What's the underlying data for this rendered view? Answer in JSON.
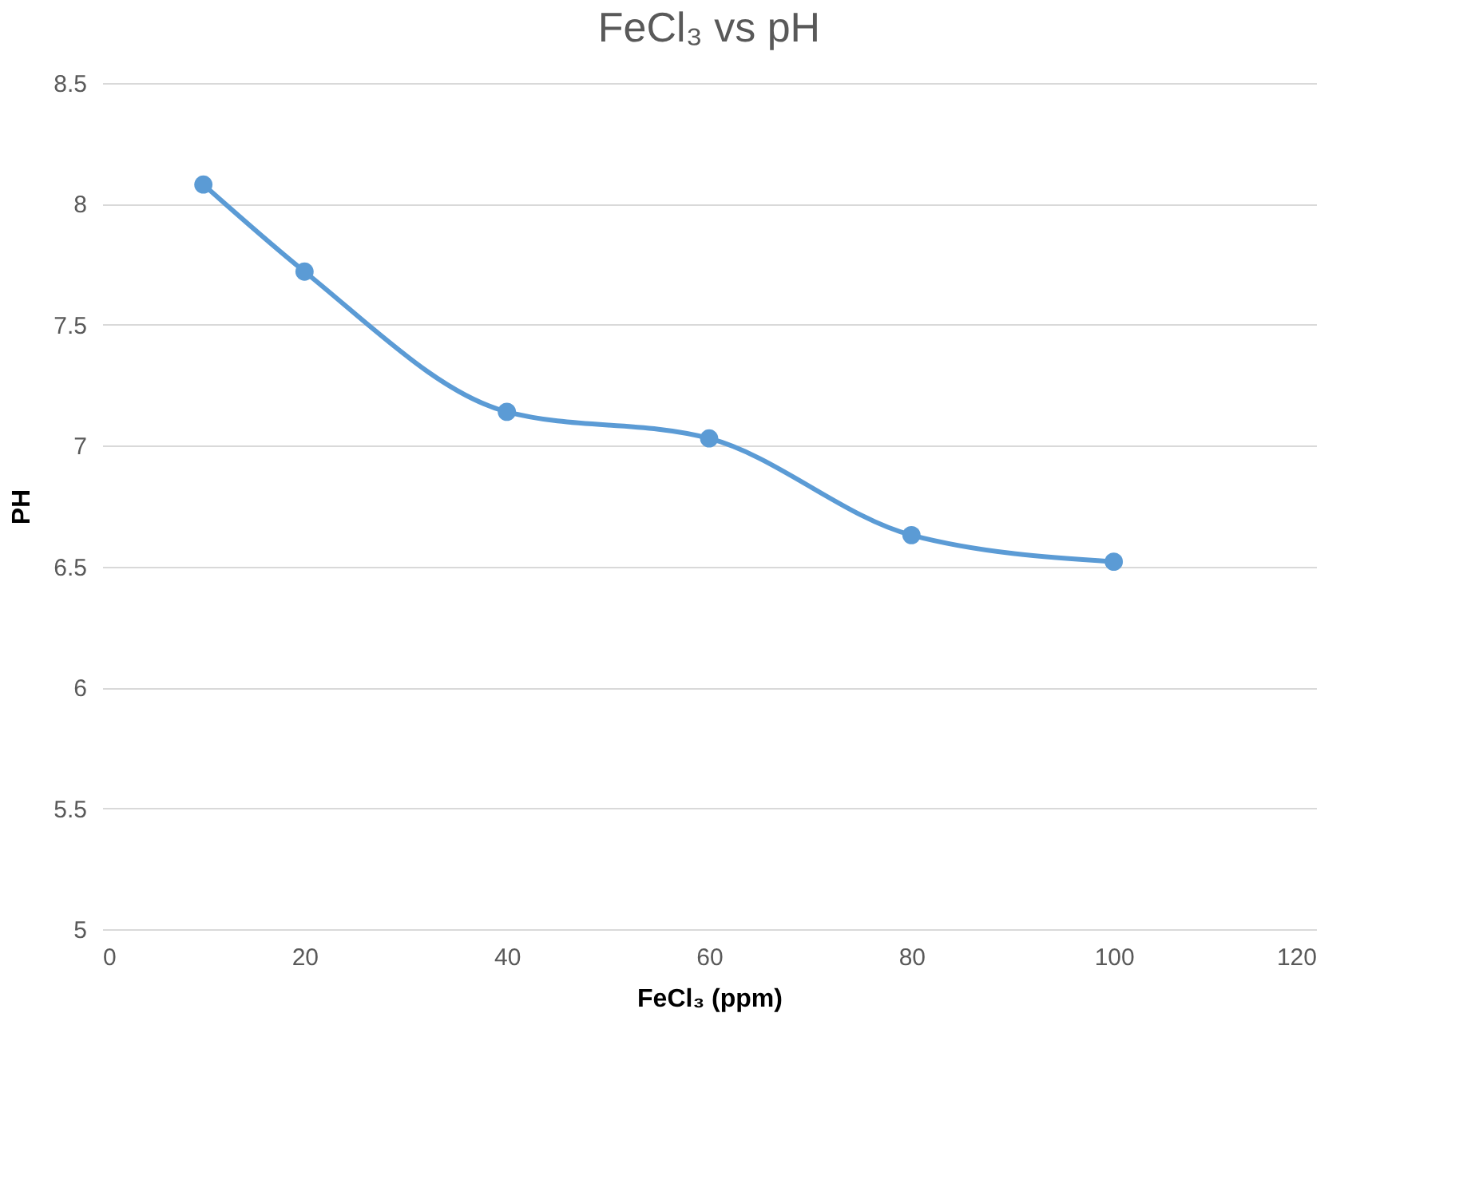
{
  "chart_data": {
    "type": "line",
    "title": "FeCl₃ vs pH",
    "xlabel": "FeCl₃ (ppm)",
    "ylabel": "PH",
    "x": [
      10,
      20,
      40,
      60,
      80,
      100
    ],
    "series": [
      {
        "color": "#5b9bd5",
        "values": [
          8.08,
          7.72,
          7.14,
          7.03,
          6.63,
          6.52
        ]
      }
    ],
    "xlim": [
      0,
      120
    ],
    "xticks": [
      0,
      20,
      40,
      60,
      80,
      100,
      120
    ],
    "ylim": [
      5,
      8.5
    ],
    "yticks": [
      5,
      5.5,
      6,
      6.5,
      7,
      7.5,
      8,
      8.5
    ],
    "grid": "y",
    "marker": "circle",
    "line_style": "solid"
  }
}
